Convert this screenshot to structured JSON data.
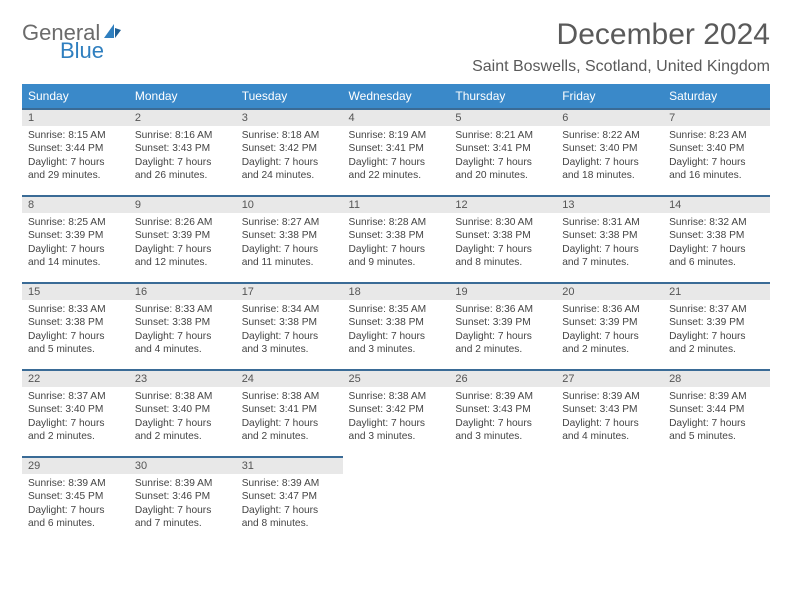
{
  "brand": {
    "g": "General",
    "b": "Blue"
  },
  "title": "December 2024",
  "location": "Saint Boswells, Scotland, United Kingdom",
  "colors": {
    "header_bg": "#3a89c9",
    "header_text": "#ffffff",
    "row_border": "#3a6b96",
    "daynum_bg": "#e8e8e8",
    "body_text": "#444444",
    "brand_gray": "#6b6b6b",
    "brand_blue": "#2f7fbf"
  },
  "typography": {
    "title_fontsize": 30,
    "location_fontsize": 16,
    "header_fontsize": 12,
    "daynum_fontsize": 11,
    "body_fontsize": 10.2
  },
  "weekdays": [
    "Sunday",
    "Monday",
    "Tuesday",
    "Wednesday",
    "Thursday",
    "Friday",
    "Saturday"
  ],
  "weeks": [
    [
      {
        "n": "1",
        "sr": "Sunrise: 8:15 AM",
        "ss": "Sunset: 3:44 PM",
        "d1": "Daylight: 7 hours",
        "d2": "and 29 minutes."
      },
      {
        "n": "2",
        "sr": "Sunrise: 8:16 AM",
        "ss": "Sunset: 3:43 PM",
        "d1": "Daylight: 7 hours",
        "d2": "and 26 minutes."
      },
      {
        "n": "3",
        "sr": "Sunrise: 8:18 AM",
        "ss": "Sunset: 3:42 PM",
        "d1": "Daylight: 7 hours",
        "d2": "and 24 minutes."
      },
      {
        "n": "4",
        "sr": "Sunrise: 8:19 AM",
        "ss": "Sunset: 3:41 PM",
        "d1": "Daylight: 7 hours",
        "d2": "and 22 minutes."
      },
      {
        "n": "5",
        "sr": "Sunrise: 8:21 AM",
        "ss": "Sunset: 3:41 PM",
        "d1": "Daylight: 7 hours",
        "d2": "and 20 minutes."
      },
      {
        "n": "6",
        "sr": "Sunrise: 8:22 AM",
        "ss": "Sunset: 3:40 PM",
        "d1": "Daylight: 7 hours",
        "d2": "and 18 minutes."
      },
      {
        "n": "7",
        "sr": "Sunrise: 8:23 AM",
        "ss": "Sunset: 3:40 PM",
        "d1": "Daylight: 7 hours",
        "d2": "and 16 minutes."
      }
    ],
    [
      {
        "n": "8",
        "sr": "Sunrise: 8:25 AM",
        "ss": "Sunset: 3:39 PM",
        "d1": "Daylight: 7 hours",
        "d2": "and 14 minutes."
      },
      {
        "n": "9",
        "sr": "Sunrise: 8:26 AM",
        "ss": "Sunset: 3:39 PM",
        "d1": "Daylight: 7 hours",
        "d2": "and 12 minutes."
      },
      {
        "n": "10",
        "sr": "Sunrise: 8:27 AM",
        "ss": "Sunset: 3:38 PM",
        "d1": "Daylight: 7 hours",
        "d2": "and 11 minutes."
      },
      {
        "n": "11",
        "sr": "Sunrise: 8:28 AM",
        "ss": "Sunset: 3:38 PM",
        "d1": "Daylight: 7 hours",
        "d2": "and 9 minutes."
      },
      {
        "n": "12",
        "sr": "Sunrise: 8:30 AM",
        "ss": "Sunset: 3:38 PM",
        "d1": "Daylight: 7 hours",
        "d2": "and 8 minutes."
      },
      {
        "n": "13",
        "sr": "Sunrise: 8:31 AM",
        "ss": "Sunset: 3:38 PM",
        "d1": "Daylight: 7 hours",
        "d2": "and 7 minutes."
      },
      {
        "n": "14",
        "sr": "Sunrise: 8:32 AM",
        "ss": "Sunset: 3:38 PM",
        "d1": "Daylight: 7 hours",
        "d2": "and 6 minutes."
      }
    ],
    [
      {
        "n": "15",
        "sr": "Sunrise: 8:33 AM",
        "ss": "Sunset: 3:38 PM",
        "d1": "Daylight: 7 hours",
        "d2": "and 5 minutes."
      },
      {
        "n": "16",
        "sr": "Sunrise: 8:33 AM",
        "ss": "Sunset: 3:38 PM",
        "d1": "Daylight: 7 hours",
        "d2": "and 4 minutes."
      },
      {
        "n": "17",
        "sr": "Sunrise: 8:34 AM",
        "ss": "Sunset: 3:38 PM",
        "d1": "Daylight: 7 hours",
        "d2": "and 3 minutes."
      },
      {
        "n": "18",
        "sr": "Sunrise: 8:35 AM",
        "ss": "Sunset: 3:38 PM",
        "d1": "Daylight: 7 hours",
        "d2": "and 3 minutes."
      },
      {
        "n": "19",
        "sr": "Sunrise: 8:36 AM",
        "ss": "Sunset: 3:39 PM",
        "d1": "Daylight: 7 hours",
        "d2": "and 2 minutes."
      },
      {
        "n": "20",
        "sr": "Sunrise: 8:36 AM",
        "ss": "Sunset: 3:39 PM",
        "d1": "Daylight: 7 hours",
        "d2": "and 2 minutes."
      },
      {
        "n": "21",
        "sr": "Sunrise: 8:37 AM",
        "ss": "Sunset: 3:39 PM",
        "d1": "Daylight: 7 hours",
        "d2": "and 2 minutes."
      }
    ],
    [
      {
        "n": "22",
        "sr": "Sunrise: 8:37 AM",
        "ss": "Sunset: 3:40 PM",
        "d1": "Daylight: 7 hours",
        "d2": "and 2 minutes."
      },
      {
        "n": "23",
        "sr": "Sunrise: 8:38 AM",
        "ss": "Sunset: 3:40 PM",
        "d1": "Daylight: 7 hours",
        "d2": "and 2 minutes."
      },
      {
        "n": "24",
        "sr": "Sunrise: 8:38 AM",
        "ss": "Sunset: 3:41 PM",
        "d1": "Daylight: 7 hours",
        "d2": "and 2 minutes."
      },
      {
        "n": "25",
        "sr": "Sunrise: 8:38 AM",
        "ss": "Sunset: 3:42 PM",
        "d1": "Daylight: 7 hours",
        "d2": "and 3 minutes."
      },
      {
        "n": "26",
        "sr": "Sunrise: 8:39 AM",
        "ss": "Sunset: 3:43 PM",
        "d1": "Daylight: 7 hours",
        "d2": "and 3 minutes."
      },
      {
        "n": "27",
        "sr": "Sunrise: 8:39 AM",
        "ss": "Sunset: 3:43 PM",
        "d1": "Daylight: 7 hours",
        "d2": "and 4 minutes."
      },
      {
        "n": "28",
        "sr": "Sunrise: 8:39 AM",
        "ss": "Sunset: 3:44 PM",
        "d1": "Daylight: 7 hours",
        "d2": "and 5 minutes."
      }
    ],
    [
      {
        "n": "29",
        "sr": "Sunrise: 8:39 AM",
        "ss": "Sunset: 3:45 PM",
        "d1": "Daylight: 7 hours",
        "d2": "and 6 minutes."
      },
      {
        "n": "30",
        "sr": "Sunrise: 8:39 AM",
        "ss": "Sunset: 3:46 PM",
        "d1": "Daylight: 7 hours",
        "d2": "and 7 minutes."
      },
      {
        "n": "31",
        "sr": "Sunrise: 8:39 AM",
        "ss": "Sunset: 3:47 PM",
        "d1": "Daylight: 7 hours",
        "d2": "and 8 minutes."
      },
      null,
      null,
      null,
      null
    ]
  ]
}
